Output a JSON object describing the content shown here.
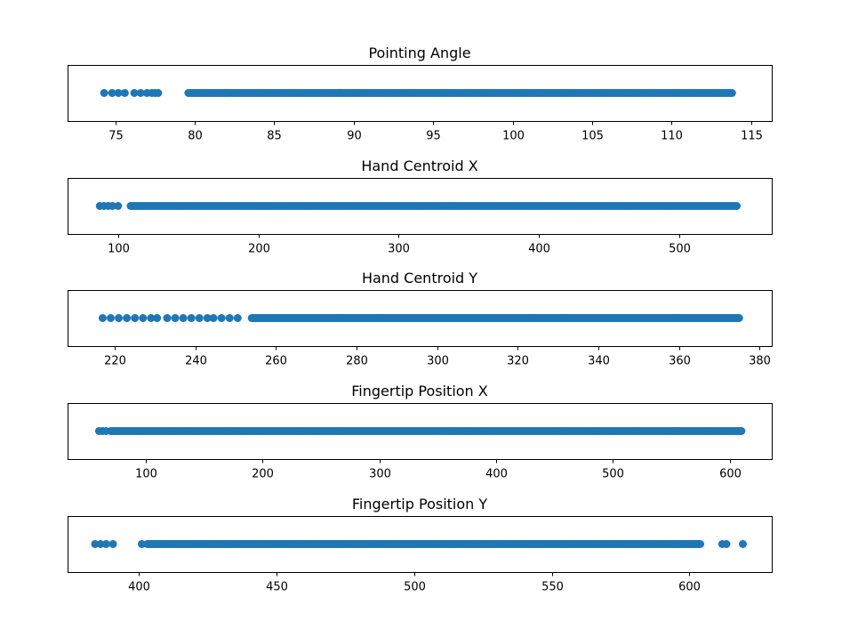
{
  "chart_data": [
    {
      "type": "scatter",
      "title": "Pointing Angle",
      "xlabel": "",
      "ylabel": "",
      "xlim": [
        72.0,
        116.3
      ],
      "xticks": [
        75,
        80,
        85,
        90,
        95,
        100,
        105,
        110,
        115
      ],
      "color": "#1f77b4",
      "grid": false,
      "y_visible": false,
      "points": [
        74.3,
        74.8,
        75.2,
        75.6,
        76.2,
        76.6,
        77.0,
        77.3,
        77.5,
        77.7
      ],
      "dense_ranges": [
        {
          "from": 79.6,
          "to": 113.8,
          "step": 0.12
        }
      ]
    },
    {
      "type": "scatter",
      "title": "Hand Centroid X",
      "xlabel": "",
      "ylabel": "",
      "xlim": [
        64.0,
        566.0
      ],
      "xticks": [
        100,
        200,
        300,
        400,
        500
      ],
      "color": "#1f77b4",
      "grid": false,
      "y_visible": false,
      "points": [
        87,
        90,
        93,
        96,
        100
      ],
      "dense_ranges": [
        {
          "from": 109,
          "to": 541,
          "step": 1.5
        }
      ]
    },
    {
      "type": "scatter",
      "title": "Hand Centroid Y",
      "xlabel": "",
      "ylabel": "",
      "xlim": [
        208.3,
        383.0
      ],
      "xticks": [
        220,
        240,
        260,
        280,
        300,
        320,
        340,
        360,
        380
      ],
      "color": "#1f77b4",
      "grid": false,
      "y_visible": false,
      "points": [
        217,
        219,
        221,
        223,
        225,
        227,
        229,
        230.5,
        233,
        235,
        237,
        239,
        241,
        243,
        244.5,
        246.5,
        248.5,
        250.5
      ],
      "dense_ranges": [
        {
          "from": 254,
          "to": 375,
          "step": 0.3
        }
      ]
    },
    {
      "type": "scatter",
      "title": "Fingertip Position X",
      "xlabel": "",
      "ylabel": "",
      "xlim": [
        33.0,
        636.0
      ],
      "xticks": [
        100,
        200,
        300,
        400,
        500,
        600
      ],
      "color": "#1f77b4",
      "grid": false,
      "y_visible": false,
      "points": [
        60,
        63,
        66
      ],
      "dense_ranges": [
        {
          "from": 70,
          "to": 610,
          "step": 1.5
        }
      ]
    },
    {
      "type": "scatter",
      "title": "Fingertip Position Y",
      "xlabel": "",
      "ylabel": "",
      "xlim": [
        374.0,
        630.0
      ],
      "xticks": [
        400,
        450,
        500,
        550,
        600
      ],
      "color": "#1f77b4",
      "grid": false,
      "y_visible": false,
      "points": [
        384,
        386,
        388,
        390.5,
        401,
        612,
        613.5,
        619.5
      ],
      "dense_ranges": [
        {
          "from": 403,
          "to": 604,
          "step": 0.5
        }
      ]
    }
  ]
}
